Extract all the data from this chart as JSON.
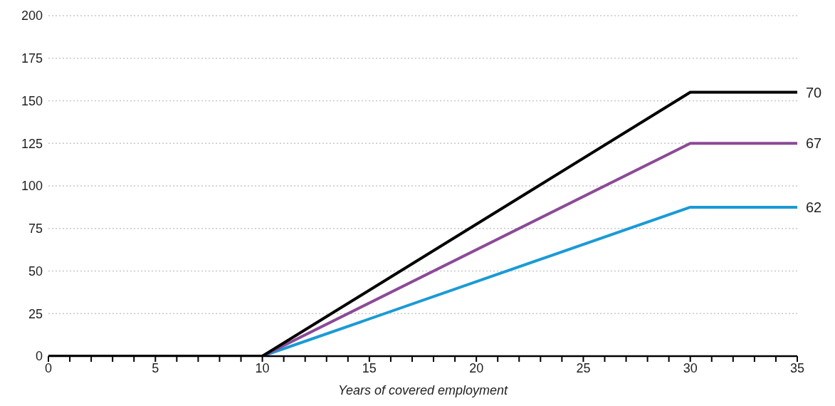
{
  "chart_data": {
    "type": "line",
    "xlabel": "Years of covered employment",
    "x": [
      0,
      10,
      30,
      35
    ],
    "series": [
      {
        "name": "70",
        "color": "#000000",
        "values": [
          0,
          0,
          155,
          155
        ]
      },
      {
        "name": "67",
        "color": "#8b4a97",
        "values": [
          0,
          0,
          125,
          125
        ]
      },
      {
        "name": "62",
        "color": "#1a9ad6",
        "values": [
          0,
          0,
          87.5,
          87.5
        ]
      }
    ],
    "xlim": [
      0,
      35
    ],
    "xticks": [
      0,
      {
        "value": 1,
        "label": null
      },
      {
        "value": 2,
        "label": null
      },
      {
        "value": 3,
        "label": null
      },
      {
        "value": 4,
        "label": null
      },
      5,
      {
        "value": 6,
        "label": null
      },
      {
        "value": 7,
        "label": null
      },
      {
        "value": 8,
        "label": null
      },
      {
        "value": 9,
        "label": null
      },
      10,
      {
        "value": 11,
        "label": null
      },
      {
        "value": 12,
        "label": null
      },
      {
        "value": 13,
        "label": null
      },
      {
        "value": 14,
        "label": null
      },
      15,
      {
        "value": 16,
        "label": null
      },
      {
        "value": 17,
        "label": null
      },
      {
        "value": 18,
        "label": null
      },
      {
        "value": 19,
        "label": null
      },
      20,
      {
        "value": 21,
        "label": null
      },
      {
        "value": 22,
        "label": null
      },
      {
        "value": 23,
        "label": null
      },
      {
        "value": 24,
        "label": null
      },
      25,
      {
        "value": 26,
        "label": null
      },
      {
        "value": 27,
        "label": null
      },
      {
        "value": 28,
        "label": null
      },
      {
        "value": 29,
        "label": null
      },
      30,
      {
        "value": 31,
        "label": null
      },
      {
        "value": 32,
        "label": null
      },
      {
        "value": 33,
        "label": null
      },
      {
        "value": 34,
        "label": null
      },
      35
    ],
    "ylim": [
      0,
      200
    ],
    "yticks": [
      0,
      25,
      50,
      75,
      100,
      125,
      150,
      175,
      200
    ],
    "grid": "y",
    "legend": false,
    "marker": "none",
    "line_style": "solid"
  }
}
